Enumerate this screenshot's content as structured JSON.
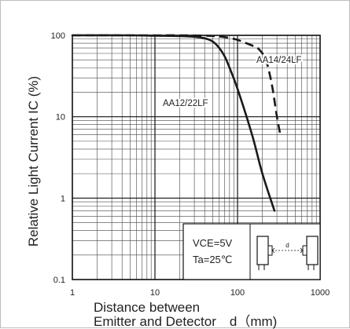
{
  "chart_data": {
    "type": "line",
    "xlabel_lines": [
      "Distance between",
      "Emitter and Detector　d（mm)"
    ],
    "ylabel": "Relative Light Current  IC (%)",
    "xlim": [
      1,
      1000
    ],
    "ylim": [
      0.1,
      100
    ],
    "xscale": "log",
    "yscale": "log",
    "grid": true,
    "x_ticks": [
      1,
      10,
      100,
      1000
    ],
    "x_tick_labels": [
      "1",
      "10",
      "100",
      "1000"
    ],
    "y_ticks": [
      0.1,
      1,
      10,
      100
    ],
    "y_tick_labels": [
      "0.1",
      "1",
      "10",
      "100"
    ],
    "series": [
      {
        "name": "AA12/22LF",
        "style": "solid",
        "x": [
          1,
          5,
          10,
          20,
          30,
          40,
          50,
          60,
          70,
          80,
          100,
          150,
          200,
          280
        ],
        "y": [
          100,
          100,
          99,
          98,
          96,
          92,
          84,
          70,
          55,
          40,
          22,
          6,
          2,
          0.7
        ]
      },
      {
        "name": "AA14/24LF",
        "style": "dashed",
        "x": [
          1,
          10,
          20,
          40,
          60,
          80,
          100,
          120,
          150,
          180,
          220,
          260,
          300,
          330
        ],
        "y": [
          100,
          100,
          100,
          99,
          97,
          93,
          88,
          82,
          75,
          68,
          50,
          25,
          10,
          6
        ]
      }
    ],
    "conditions": [
      "VCE=5V",
      "Ta=25℃"
    ],
    "inset_label": "d"
  }
}
